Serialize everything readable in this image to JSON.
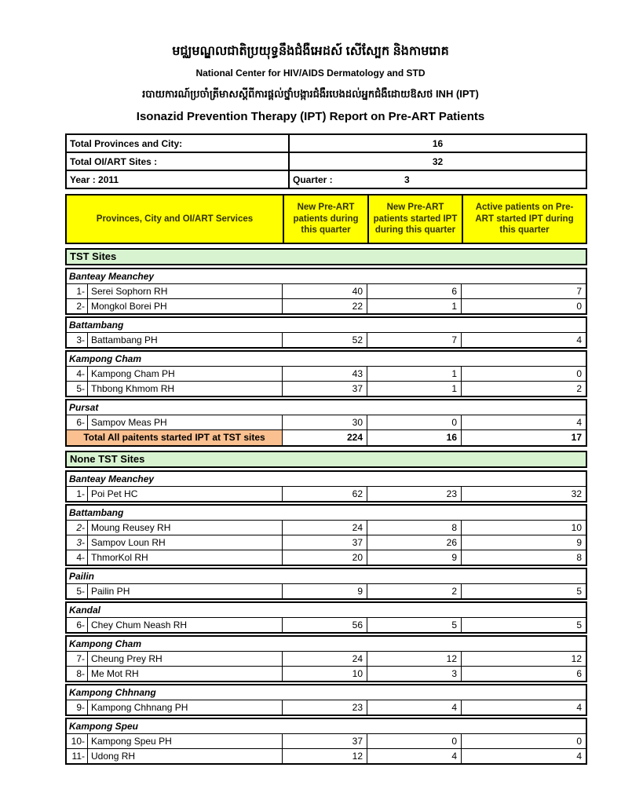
{
  "header": {
    "org_title_khmer": "មជ្ឈមណ្ឌលជាតិប្រយុទ្ធនឹងជំងឺអេដស៍ សើស្បែក និងកាមរោគ",
    "org_title_english": "National Center for HIV/AIDS Dermatology and STD",
    "report_subtitle_khmer": "របាយការណ៍ប្រចាំត្រីមាសស្តីពីការផ្តល់ថ្នាំបង្ការជំងឺរបេងដល់អ្នកជំងឺដោយឱសថ INH (IPT)",
    "report_title": "Isonazid Prevention Therapy (IPT) Report on Pre-ART Patients"
  },
  "info": {
    "rows": [
      {
        "label": "Total Provinces and City:",
        "value": "16"
      },
      {
        "label": "Total OI/ART Sites :",
        "value": "32"
      }
    ],
    "year_label": "Year : 2011",
    "quarter_label": "Quarter :",
    "quarter_value": "3"
  },
  "table_header": {
    "col_services": "Provinces, City and OI/ART Services",
    "col_new_preart": "New Pre-ART patients during this quarter",
    "col_started_ipt": "New Pre-ART patients started IPT during this quarter",
    "col_active_ipt": "Active patients on Pre-ART started IPT  during this quarter"
  },
  "sections": [
    {
      "header": "TST Sites",
      "groups": [
        {
          "province": "Banteay Meanchey",
          "rows": [
            {
              "num": "1-",
              "name": "Serei Sophorn RH",
              "values": [
                "40",
                "6",
                "7"
              ]
            },
            {
              "num": "2-",
              "name": "Mongkol Borei PH",
              "values": [
                "22",
                "1",
                "0"
              ]
            }
          ]
        },
        {
          "province": "Battambang",
          "rows": [
            {
              "num": "3-",
              "name": "Battambang PH",
              "values": [
                "52",
                "7",
                "4"
              ]
            }
          ]
        },
        {
          "province": "Kampong Cham",
          "rows": [
            {
              "num": "4-",
              "name": "Kampong Cham PH",
              "values": [
                "43",
                "1",
                "0"
              ]
            },
            {
              "num": "5-",
              "name": "Thbong Khmom RH",
              "values": [
                "37",
                "1",
                "2"
              ]
            }
          ]
        },
        {
          "province": "Pursat",
          "rows": [
            {
              "num": "6-",
              "name": "Sampov Meas PH",
              "values": [
                "30",
                "0",
                "4"
              ]
            }
          ]
        }
      ],
      "total": {
        "label": "Total All paitents started IPT at TST sites",
        "values": [
          "224",
          "16",
          "17"
        ]
      }
    },
    {
      "header": "None TST Sites",
      "groups": [
        {
          "province": "Banteay Meanchey",
          "rows": [
            {
              "num": "1-",
              "name": "Poi Pet HC",
              "values": [
                "62",
                "23",
                "32"
              ]
            }
          ]
        },
        {
          "province": "Battambang",
          "rows": [
            {
              "num": "2-",
              "num_italic": true,
              "name": "Moung Reusey RH",
              "values": [
                "24",
                "8",
                "10"
              ]
            },
            {
              "num": "3-",
              "num_italic": true,
              "name": "Sampov Loun RH",
              "values": [
                "37",
                "26",
                "9"
              ]
            },
            {
              "num": "4-",
              "name": "ThmorKol RH",
              "values": [
                "20",
                "9",
                "8"
              ]
            }
          ]
        },
        {
          "province": "Pailin",
          "rows": [
            {
              "num": "5-",
              "name": "Pailin PH",
              "values": [
                "9",
                "2",
                "5"
              ]
            }
          ]
        },
        {
          "province": "Kandal",
          "rows": [
            {
              "num": "6-",
              "name": "Chey Chum Neash RH",
              "values": [
                "56",
                "5",
                "5"
              ]
            }
          ]
        },
        {
          "province": "Kampong Cham",
          "rows": [
            {
              "num": "7-",
              "name": "Cheung Prey RH",
              "values": [
                "24",
                "12",
                "12"
              ]
            },
            {
              "num": "8-",
              "name": "Me Mot RH",
              "values": [
                "10",
                "3",
                "6"
              ]
            }
          ]
        },
        {
          "province": "Kampong Chhnang",
          "rows": [
            {
              "num": "9-",
              "name": "Kampong Chhnang PH",
              "values": [
                "23",
                "4",
                "4"
              ]
            }
          ]
        },
        {
          "province": "Kampong Speu",
          "rows": [
            {
              "num": "10-",
              "name": "Kampong Speu PH",
              "values": [
                "37",
                "0",
                "0"
              ]
            },
            {
              "num": "11-",
              "name": "Udong RH",
              "values": [
                "12",
                "4",
                "4"
              ]
            }
          ]
        }
      ]
    }
  ],
  "colors": {
    "column_header_bg": "#ffff00",
    "section_header_bg": "#d8f3d0",
    "total_row_bg": "#fac090",
    "border": "#000000"
  }
}
